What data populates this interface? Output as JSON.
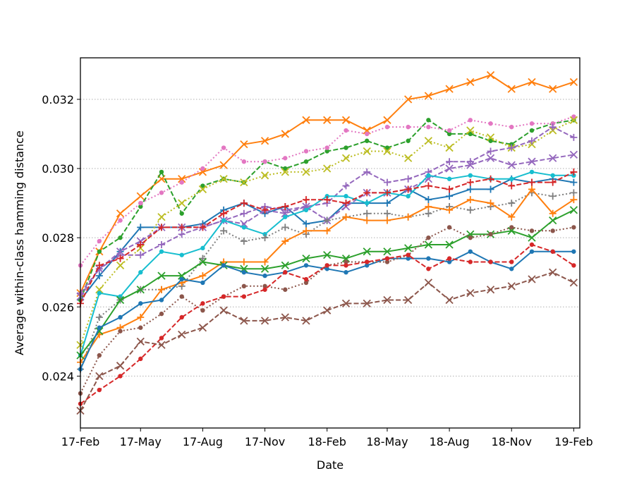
{
  "chart_data": {
    "type": "line",
    "title": "",
    "xlabel": "Date",
    "ylabel": "Average within-class hamming distance",
    "x": [
      "2017-02-01",
      "2017-03-01",
      "2017-04-01",
      "2017-05-01",
      "2017-06-01",
      "2017-07-01",
      "2017-08-01",
      "2017-09-01",
      "2017-10-01",
      "2017-11-01",
      "2017-12-01",
      "2018-01-01",
      "2018-02-01",
      "2018-03-01",
      "2018-04-01",
      "2018-05-01",
      "2018-06-01",
      "2018-07-01",
      "2018-08-01",
      "2018-09-01",
      "2018-10-01",
      "2018-11-01",
      "2018-12-01",
      "2019-01-01",
      "2019-02-01"
    ],
    "xlim": [
      "2017-02-01",
      "2019-02-10"
    ],
    "xticks": [
      {
        "date": "2017-02-01",
        "label": "17-Feb"
      },
      {
        "date": "2017-05-01",
        "label": "17-May"
      },
      {
        "date": "2017-08-01",
        "label": "17-Aug"
      },
      {
        "date": "2017-11-01",
        "label": "17-Nov"
      },
      {
        "date": "2018-02-01",
        "label": "18-Feb"
      },
      {
        "date": "2018-05-01",
        "label": "18-May"
      },
      {
        "date": "2018-08-01",
        "label": "18-Aug"
      },
      {
        "date": "2018-11-01",
        "label": "18-Nov"
      },
      {
        "date": "2019-02-01",
        "label": "19-Feb"
      }
    ],
    "ylim": [
      0.0225,
      0.0332
    ],
    "yticks": [
      {
        "value": 0.024,
        "label": "0.024"
      },
      {
        "value": 0.026,
        "label": "0.026"
      },
      {
        "value": 0.028,
        "label": "0.028"
      },
      {
        "value": 0.03,
        "label": "0.030"
      },
      {
        "value": 0.032,
        "label": "0.032"
      }
    ],
    "grid": "horizontal dotted",
    "legend": "none",
    "series": [
      {
        "color": "#1f77b4",
        "line": "solid",
        "marker": "plus",
        "values": [
          0.0262,
          0.0269,
          0.0276,
          0.0283,
          0.0283,
          0.0283,
          0.0284,
          0.0288,
          0.029,
          0.0287,
          0.0289,
          0.0284,
          0.0285,
          0.029,
          0.029,
          0.029,
          0.0294,
          0.0291,
          0.0292,
          0.0294,
          0.0294,
          0.0297,
          0.0296,
          0.0297,
          0.0296
        ]
      },
      {
        "color": "#ff7f0e",
        "line": "solid",
        "marker": "x",
        "values": [
          0.0264,
          0.0276,
          0.0287,
          0.0292,
          0.0297,
          0.0297,
          0.0299,
          0.0301,
          0.0307,
          0.0308,
          0.031,
          0.0314,
          0.0314,
          0.0314,
          0.0311,
          0.0314,
          0.032,
          0.0321,
          0.0323,
          0.0325,
          0.0327,
          0.0323,
          0.0325,
          0.0323,
          0.0325
        ]
      },
      {
        "color": "#2ca02c",
        "line": "dashed",
        "marker": "dot",
        "values": [
          0.0262,
          0.0276,
          0.028,
          0.0289,
          0.0299,
          0.0287,
          0.0295,
          0.0297,
          0.0296,
          0.0302,
          0.03,
          0.0302,
          0.0305,
          0.0306,
          0.0308,
          0.0306,
          0.0308,
          0.0314,
          0.031,
          0.031,
          0.0308,
          0.0307,
          0.0311,
          0.0313,
          0.0314
        ]
      },
      {
        "color": "#e377c2",
        "line": "dotted",
        "marker": "dot",
        "values": [
          0.0272,
          0.0279,
          0.0285,
          0.029,
          0.0293,
          0.0296,
          0.03,
          0.0306,
          0.0302,
          0.0302,
          0.0303,
          0.0305,
          0.0306,
          0.0311,
          0.031,
          0.0312,
          0.0312,
          0.0312,
          0.0311,
          0.0314,
          0.0313,
          0.0312,
          0.0313,
          0.0313,
          0.0315
        ]
      },
      {
        "color": "#bcbd22",
        "line": "dotted",
        "marker": "x",
        "values": [
          0.0249,
          0.0265,
          0.0272,
          0.0277,
          0.0286,
          0.029,
          0.0294,
          0.0297,
          0.0296,
          0.0298,
          0.0299,
          0.0299,
          0.03,
          0.0303,
          0.0305,
          0.0305,
          0.0303,
          0.0308,
          0.0306,
          0.0311,
          0.0309,
          0.0306,
          0.0307,
          0.0311,
          0.0314
        ]
      },
      {
        "color": "#9467bd",
        "line": "dashed",
        "marker": "plus",
        "values": [
          0.0264,
          0.0271,
          0.0275,
          0.0275,
          0.0278,
          0.0281,
          0.0283,
          0.0285,
          0.0287,
          0.0289,
          0.0288,
          0.0289,
          0.029,
          0.0295,
          0.0299,
          0.0296,
          0.0297,
          0.0299,
          0.0302,
          0.0302,
          0.0305,
          0.0306,
          0.0308,
          0.0312,
          0.0309
        ]
      },
      {
        "color": "#9467bd",
        "line": "dashed",
        "marker": "x",
        "values": [
          0.0263,
          0.0271,
          0.0276,
          0.0279,
          0.0283,
          0.0283,
          0.0283,
          0.0285,
          0.0284,
          0.0288,
          0.0287,
          0.0289,
          0.0285,
          0.0289,
          0.0293,
          0.0293,
          0.0294,
          0.0297,
          0.03,
          0.0301,
          0.0303,
          0.0301,
          0.0302,
          0.0303,
          0.0304
        ]
      },
      {
        "color": "#17becf",
        "line": "solid",
        "marker": "dot",
        "values": [
          0.0246,
          0.0264,
          0.0263,
          0.027,
          0.0276,
          0.0275,
          0.0277,
          0.0285,
          0.0283,
          0.0281,
          0.0286,
          0.0288,
          0.0292,
          0.0292,
          0.029,
          0.0293,
          0.0292,
          0.0298,
          0.0297,
          0.0298,
          0.0297,
          0.0297,
          0.0299,
          0.0298,
          0.0298
        ]
      },
      {
        "color": "#d62728",
        "line": "dashed",
        "marker": "plus",
        "values": [
          0.0261,
          0.0272,
          0.0274,
          0.0278,
          0.0283,
          0.0283,
          0.0283,
          0.0287,
          0.029,
          0.0288,
          0.0289,
          0.0291,
          0.0291,
          0.029,
          0.0293,
          0.0293,
          0.0294,
          0.0295,
          0.0294,
          0.0296,
          0.0297,
          0.0295,
          0.0296,
          0.0296,
          0.0299
        ]
      },
      {
        "color": "#7f7f7f",
        "line": "dotted",
        "marker": "plus",
        "values": [
          0.0242,
          0.0257,
          0.0262,
          0.0265,
          0.0265,
          0.0266,
          0.0274,
          0.0282,
          0.0279,
          0.028,
          0.0283,
          0.0281,
          0.0285,
          0.0286,
          0.0287,
          0.0287,
          0.0286,
          0.0287,
          0.0289,
          0.0288,
          0.0289,
          0.029,
          0.0293,
          0.0292,
          0.0293
        ]
      },
      {
        "color": "#ff7f0e",
        "line": "solid",
        "marker": "plus",
        "values": [
          0.0244,
          0.0252,
          0.0254,
          0.0257,
          0.0265,
          0.0267,
          0.0269,
          0.0273,
          0.0273,
          0.0273,
          0.0279,
          0.0282,
          0.0282,
          0.0286,
          0.0285,
          0.0285,
          0.0286,
          0.0289,
          0.0288,
          0.0291,
          0.029,
          0.0286,
          0.0294,
          0.0287,
          0.0291
        ]
      },
      {
        "color": "#2ca02c",
        "line": "solid",
        "marker": "x",
        "values": [
          0.0246,
          0.0253,
          0.0262,
          0.0265,
          0.0269,
          0.0269,
          0.0273,
          0.0272,
          0.0271,
          0.0271,
          0.0272,
          0.0274,
          0.0275,
          0.0274,
          0.0276,
          0.0276,
          0.0277,
          0.0278,
          0.0278,
          0.0281,
          0.0281,
          0.0282,
          0.028,
          0.0285,
          0.0288
        ]
      },
      {
        "color": "#1f77b4",
        "line": "solid",
        "marker": "dot",
        "values": [
          0.0242,
          0.0254,
          0.0257,
          0.0261,
          0.0262,
          0.0268,
          0.0267,
          0.0272,
          0.027,
          0.0269,
          0.027,
          0.0272,
          0.0271,
          0.027,
          0.0272,
          0.0274,
          0.0274,
          0.0274,
          0.0273,
          0.0276,
          0.0273,
          0.0271,
          0.0276,
          0.0276,
          0.0276
        ]
      },
      {
        "color": "#8c564b",
        "line": "dotted",
        "marker": "dot",
        "values": [
          0.0235,
          0.0246,
          0.0253,
          0.0254,
          0.0258,
          0.0263,
          0.0259,
          0.0263,
          0.0266,
          0.0266,
          0.0265,
          0.0267,
          0.0272,
          0.0273,
          0.0273,
          0.0273,
          0.0275,
          0.028,
          0.0283,
          0.028,
          0.0281,
          0.0283,
          0.0282,
          0.0282,
          0.0283
        ]
      },
      {
        "color": "#d62728",
        "line": "dashed",
        "marker": "dot",
        "values": [
          0.0232,
          0.0236,
          0.024,
          0.0245,
          0.0251,
          0.0257,
          0.0261,
          0.0263,
          0.0263,
          0.0265,
          0.027,
          0.0268,
          0.0272,
          0.0272,
          0.0273,
          0.0274,
          0.0275,
          0.0271,
          0.0274,
          0.0273,
          0.0273,
          0.0273,
          0.0278,
          0.0276,
          0.0272
        ]
      },
      {
        "color": "#8c564b",
        "line": "dashed",
        "marker": "x",
        "values": [
          0.023,
          0.024,
          0.0243,
          0.025,
          0.0249,
          0.0252,
          0.0254,
          0.0259,
          0.0256,
          0.0256,
          0.0257,
          0.0256,
          0.0259,
          0.0261,
          0.0261,
          0.0262,
          0.0262,
          0.0267,
          0.0262,
          0.0264,
          0.0265,
          0.0266,
          0.0268,
          0.027,
          0.0267
        ]
      }
    ]
  }
}
